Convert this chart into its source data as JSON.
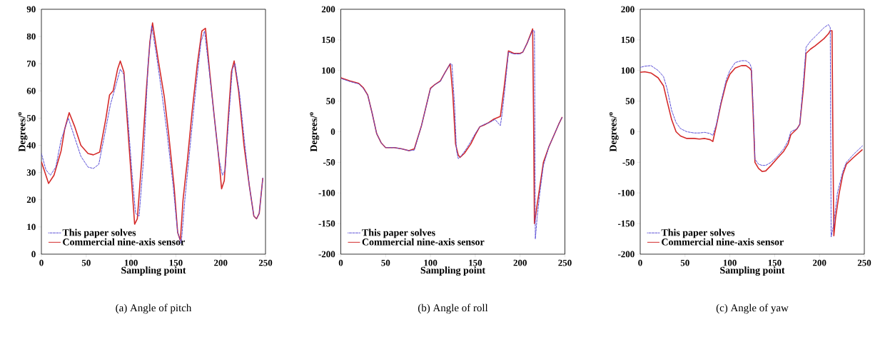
{
  "chart_data": [
    {
      "type": "line",
      "title": "(a) Angle of pitch",
      "xlabel": "Sampling point",
      "ylabel": "Degrees/$^{o}$",
      "xlim": [
        0,
        250
      ],
      "ylim": [
        0,
        90
      ],
      "xticks": [
        0,
        50,
        100,
        150,
        200,
        250
      ],
      "yticks": [
        0,
        10,
        20,
        30,
        40,
        50,
        60,
        70,
        80,
        90
      ],
      "legend": "bottom left",
      "marker": "none",
      "series": [
        {
          "name": "This paper solves",
          "color": "#5a4fd6",
          "line_style": "dashed",
          "x": [
            0,
            5,
            10,
            16,
            22,
            30,
            37,
            44,
            52,
            58,
            64,
            70,
            77,
            83,
            88,
            92,
            96,
            101,
            105,
            109,
            114,
            119,
            123,
            128,
            134,
            140,
            147,
            152,
            156,
            160,
            166,
            172,
            178,
            182,
            187,
            193,
            198,
            202,
            205,
            209,
            213,
            216,
            221,
            227,
            232,
            237,
            240,
            243,
            247
          ],
          "values": [
            37,
            31,
            29,
            32,
            42,
            50,
            43,
            36,
            32,
            31.5,
            33,
            43,
            55,
            62,
            68,
            66,
            52,
            30,
            15,
            14,
            35,
            70,
            84,
            74,
            60,
            45,
            25,
            8,
            4,
            20,
            40,
            60,
            78,
            82,
            68,
            50,
            35,
            29,
            31,
            50,
            68,
            70,
            59,
            40,
            25,
            14,
            13,
            15,
            28
          ]
        },
        {
          "name": "Commercial nine-axis sensor",
          "color": "#d42a2a",
          "line_style": "solid",
          "x": [
            0,
            8,
            14,
            22,
            26,
            31,
            37,
            44,
            52,
            58,
            65,
            72,
            76,
            80,
            85,
            88,
            92,
            96,
            101,
            104,
            107,
            112,
            117,
            121,
            124,
            130,
            137,
            142,
            148,
            152,
            155,
            158,
            163,
            168,
            174,
            179,
            183,
            188,
            193,
            198,
            201,
            204,
            208,
            212,
            215,
            220,
            226,
            232,
            237,
            240,
            243,
            247
          ],
          "values": [
            34,
            26,
            29,
            38,
            46,
            52,
            47,
            40,
            37,
            36.5,
            37.5,
            50,
            58.5,
            60,
            68,
            71,
            67,
            48,
            25,
            11,
            13,
            35,
            60,
            78,
            85,
            72,
            58,
            44,
            25,
            8,
            5,
            20,
            35,
            52,
            70,
            82,
            83,
            66,
            50,
            35,
            24,
            27,
            48,
            67,
            71,
            60,
            40,
            25,
            14,
            13,
            15,
            28
          ]
        }
      ]
    },
    {
      "type": "line",
      "title": "(b) Angle of roll",
      "xlabel": "Sampling point",
      "ylabel": "Degrees/$^{o}$",
      "xlim": [
        0,
        250
      ],
      "ylim": [
        -200,
        200
      ],
      "xticks": [
        0,
        50,
        100,
        150,
        200,
        250
      ],
      "yticks": [
        -200,
        -150,
        -100,
        -50,
        0,
        50,
        100,
        150,
        200
      ],
      "legend": "bottom left",
      "marker": "none",
      "series": [
        {
          "name": "This paper solves",
          "color": "#5a4fd6",
          "line_style": "dashed",
          "x": [
            0,
            10,
            20,
            25,
            30,
            35,
            38,
            40,
            45,
            50,
            60,
            68,
            76,
            82,
            90,
            100,
            105,
            111,
            116,
            122,
            124,
            127,
            129,
            131,
            134,
            140,
            145,
            150,
            155,
            160,
            166,
            172,
            178,
            180,
            183,
            187,
            193,
            200,
            203,
            208,
            214,
            216,
            217,
            219,
            222,
            226,
            232,
            238,
            243,
            247
          ],
          "values": [
            87,
            82,
            78,
            71,
            60,
            30,
            10,
            -3,
            -18,
            -26,
            -26,
            -28,
            -31,
            -30,
            10,
            70,
            77,
            82,
            96,
            111,
            110,
            40,
            -30,
            -44,
            -40,
            -28,
            -16,
            -3,
            8,
            12,
            15,
            20,
            10,
            30,
            70,
            130,
            127,
            127,
            130,
            145,
            165,
            165,
            -175,
            -140,
            -100,
            -55,
            -25,
            -5,
            12,
            24
          ]
        },
        {
          "name": "Commercial nine-axis sensor",
          "color": "#d42a2a",
          "line_style": "solid",
          "x": [
            0,
            10,
            20,
            25,
            30,
            35,
            38,
            40,
            45,
            50,
            60,
            68,
            76,
            82,
            90,
            100,
            105,
            111,
            116,
            122,
            125,
            128,
            131,
            133,
            138,
            145,
            150,
            155,
            160,
            165,
            170,
            178,
            182,
            187,
            193,
            200,
            203,
            208,
            214,
            215,
            216,
            218,
            222,
            226,
            232,
            238,
            243,
            247
          ],
          "values": [
            88,
            83,
            79,
            72,
            60,
            30,
            10,
            -3,
            -18,
            -26,
            -26,
            -28,
            -31,
            -28,
            10,
            71,
            77,
            83,
            96,
            111,
            60,
            -20,
            -38,
            -42,
            -35,
            -20,
            -5,
            8,
            11,
            15,
            20,
            25,
            70,
            132,
            128,
            128,
            130,
            145,
            168,
            30,
            -150,
            -130,
            -90,
            -50,
            -25,
            -5,
            12,
            24
          ]
        }
      ]
    },
    {
      "type": "line",
      "title": "(c) Angle of yaw",
      "xlabel": "Sampling point",
      "ylabel": "Degrees/$^{o}$",
      "xlim": [
        0,
        250
      ],
      "ylim": [
        -200,
        200
      ],
      "xticks": [
        0,
        50,
        100,
        150,
        200,
        250
      ],
      "yticks": [
        -200,
        -150,
        -100,
        -50,
        0,
        50,
        100,
        150,
        200
      ],
      "legend": "bottom left",
      "marker": "none",
      "series": [
        {
          "name": "This paper solves",
          "color": "#5a4fd6",
          "line_style": "dashed",
          "x": [
            0,
            5,
            12,
            20,
            26,
            30,
            35,
            40,
            45,
            52,
            60,
            66,
            72,
            78,
            81,
            85,
            90,
            96,
            100,
            106,
            113,
            118,
            122,
            124,
            126,
            128,
            132,
            136,
            140,
            146,
            152,
            160,
            165,
            168,
            175,
            178,
            182,
            185,
            190,
            195,
            205,
            210,
            212,
            213,
            216,
            220,
            226,
            230,
            238,
            248
          ],
          "values": [
            105,
            107,
            108,
            100,
            90,
            70,
            35,
            15,
            5,
            0,
            -2,
            -2,
            -1,
            -3,
            -6,
            12,
            48,
            85,
            100,
            113,
            116,
            116,
            112,
            105,
            40,
            -45,
            -53,
            -55,
            -55,
            -50,
            -42,
            -28,
            -15,
            0,
            5,
            12,
            80,
            138,
            148,
            155,
            170,
            175,
            170,
            -172,
            -150,
            -100,
            -65,
            -50,
            -37,
            -23
          ]
        },
        {
          "name": "Commercial nine-axis sensor",
          "color": "#d42a2a",
          "line_style": "solid",
          "x": [
            0,
            5,
            12,
            20,
            26,
            30,
            35,
            40,
            45,
            52,
            60,
            66,
            72,
            78,
            81,
            85,
            90,
            96,
            100,
            106,
            113,
            118,
            122,
            124,
            126,
            128,
            132,
            136,
            140,
            146,
            152,
            160,
            165,
            168,
            175,
            178,
            182,
            185,
            190,
            195,
            205,
            210,
            212,
            214,
            215,
            216,
            218,
            222,
            226,
            230,
            238,
            248
          ],
          "values": [
            97,
            98,
            96,
            88,
            75,
            50,
            20,
            0,
            -7,
            -11,
            -11,
            -12,
            -11,
            -13,
            -16,
            10,
            45,
            80,
            94,
            104,
            108,
            108,
            104,
            100,
            30,
            -50,
            -60,
            -65,
            -64,
            -55,
            -45,
            -32,
            -20,
            -5,
            5,
            12,
            70,
            128,
            135,
            140,
            152,
            160,
            165,
            165,
            -20,
            -170,
            -140,
            -100,
            -70,
            -53,
            -42,
            -29
          ]
        }
      ]
    }
  ]
}
